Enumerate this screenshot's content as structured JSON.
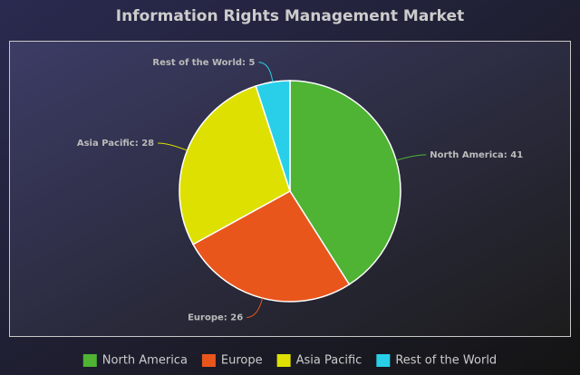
{
  "chart_data": {
    "type": "pie",
    "title": "Information Rights Management Market",
    "categories": [
      "North America",
      "Europe",
      "Asia Pacific",
      "Rest of the World"
    ],
    "values": [
      41,
      26,
      28,
      5
    ],
    "value_labels": [
      "North America: 41",
      "Europe: 26",
      "Asia Pacific: 28",
      "Rest of the World: 5"
    ],
    "colors": [
      "#4fb334",
      "#e8561c",
      "#dde000",
      "#29cfe8"
    ],
    "legend": "bottom"
  }
}
